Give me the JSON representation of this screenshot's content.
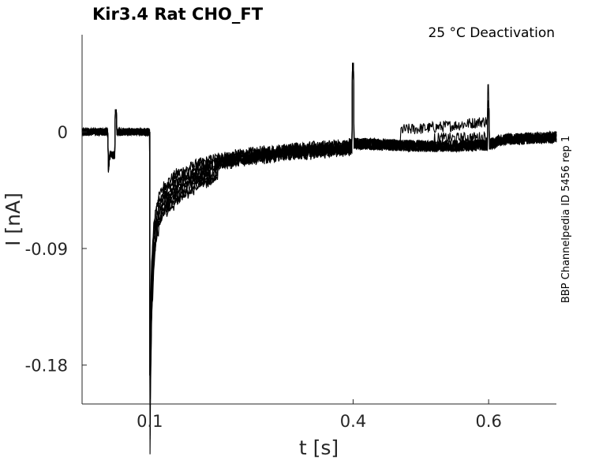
{
  "chart_data": {
    "type": "line",
    "title": "Kir3.4  Rat  CHO_FT",
    "subtitle": "25 °C  Deactivation",
    "xlabel": "t [s]",
    "ylabel": "I [nA]",
    "side_label": "BBP Channelpedia ID 5456 rep 1",
    "xlim": [
      0,
      0.7
    ],
    "ylim": [
      -0.21,
      0.075
    ],
    "x_ticks": [
      0.1,
      0.4,
      0.6
    ],
    "x_tick_labels": [
      "0.1",
      "0.4",
      "0.6"
    ],
    "y_ticks": [
      0,
      -0.09,
      -0.18
    ],
    "y_tick_labels": [
      "0",
      "-0.09",
      "-0.18"
    ],
    "grid": false,
    "series_color": "#000000",
    "n_sweeps": 9,
    "trace_points": {
      "x": [
        0,
        0.038,
        0.039,
        0.04,
        0.041,
        0.05,
        0.05,
        0.1,
        0.1,
        0.101,
        0.103,
        0.106,
        0.11,
        0.12,
        0.14,
        0.17,
        0.2,
        0.25,
        0.3,
        0.35,
        0.398,
        0.4,
        0.401,
        0.45,
        0.5,
        0.55,
        0.6,
        0.62,
        0.7
      ],
      "y": [
        0,
        0,
        -0.032,
        -0.022,
        -0.018,
        -0.018,
        0,
        0,
        -0.188,
        -0.135,
        -0.095,
        -0.07,
        -0.055,
        -0.042,
        -0.032,
        -0.025,
        -0.02,
        -0.016,
        -0.013,
        -0.011,
        -0.009,
        -0.006,
        -0.009,
        -0.01,
        -0.011,
        -0.011,
        -0.01,
        -0.006,
        -0.004
      ]
    },
    "features": [
      {
        "label": "capacitive spike",
        "x": 0.05,
        "y": 0.017
      },
      {
        "label": "artifact spike",
        "x": 0.4,
        "y": 0.053
      },
      {
        "label": "step artifact",
        "x": 0.6,
        "y": 0.018
      }
    ]
  }
}
